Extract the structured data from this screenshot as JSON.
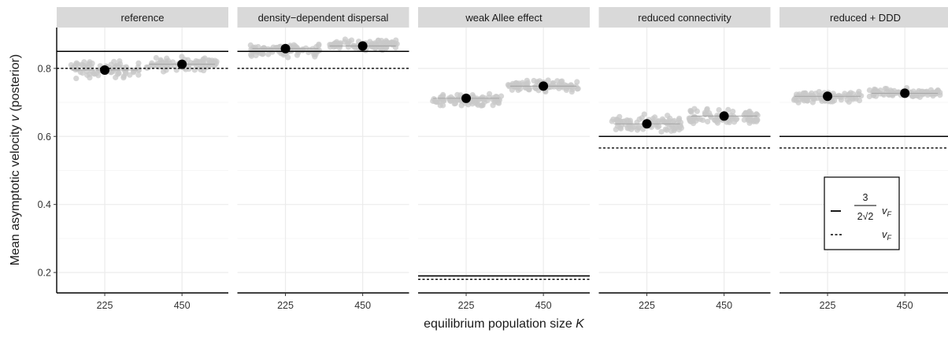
{
  "chart_data": {
    "type": "scatter",
    "ylabel": "Mean asymptotic velocity  v (posterior)",
    "xlabel": "equilibrium population size K",
    "x_categories": [
      "225",
      "450"
    ],
    "ylim": [
      0.14,
      0.92
    ],
    "y_ticks": [
      0.2,
      0.4,
      0.6,
      0.8
    ],
    "grid": true,
    "legend": {
      "position": "inside-right",
      "entries": [
        {
          "style": "solid",
          "formula": "3/(2√2) v_F"
        },
        {
          "style": "dashed",
          "formula": "v_F"
        }
      ]
    },
    "colors": {
      "points": "#c8c8c8",
      "mean": "#000000",
      "strip": "#d9d9d9",
      "grid": "#ebebeb"
    },
    "panels": [
      {
        "title": "reference",
        "ref_solid": 0.85,
        "ref_dashed": 0.8,
        "means": [
          0.795,
          0.812
        ],
        "spread": [
          [
            0.762,
            0.83
          ],
          [
            0.785,
            0.84
          ]
        ]
      },
      {
        "title": "density−dependent dispersal",
        "ref_solid": 0.85,
        "ref_dashed": 0.8,
        "means": [
          0.858,
          0.866
        ],
        "spread": [
          [
            0.828,
            0.88
          ],
          [
            0.85,
            0.89
          ]
        ]
      },
      {
        "title": "weak Allee effect",
        "ref_solid": 0.19,
        "ref_dashed": 0.18,
        "means": [
          0.712,
          0.748
        ],
        "spread": [
          [
            0.685,
            0.73
          ],
          [
            0.725,
            0.77
          ]
        ]
      },
      {
        "title": "reduced connectivity",
        "ref_solid": 0.6,
        "ref_dashed": 0.566,
        "means": [
          0.637,
          0.66
        ],
        "spread": [
          [
            0.6,
            0.67
          ],
          [
            0.62,
            0.69
          ]
        ]
      },
      {
        "title": "reduced + DDD",
        "ref_solid": 0.6,
        "ref_dashed": 0.566,
        "means": [
          0.718,
          0.727
        ],
        "spread": [
          [
            0.69,
            0.74
          ],
          [
            0.71,
            0.745
          ]
        ]
      }
    ]
  }
}
